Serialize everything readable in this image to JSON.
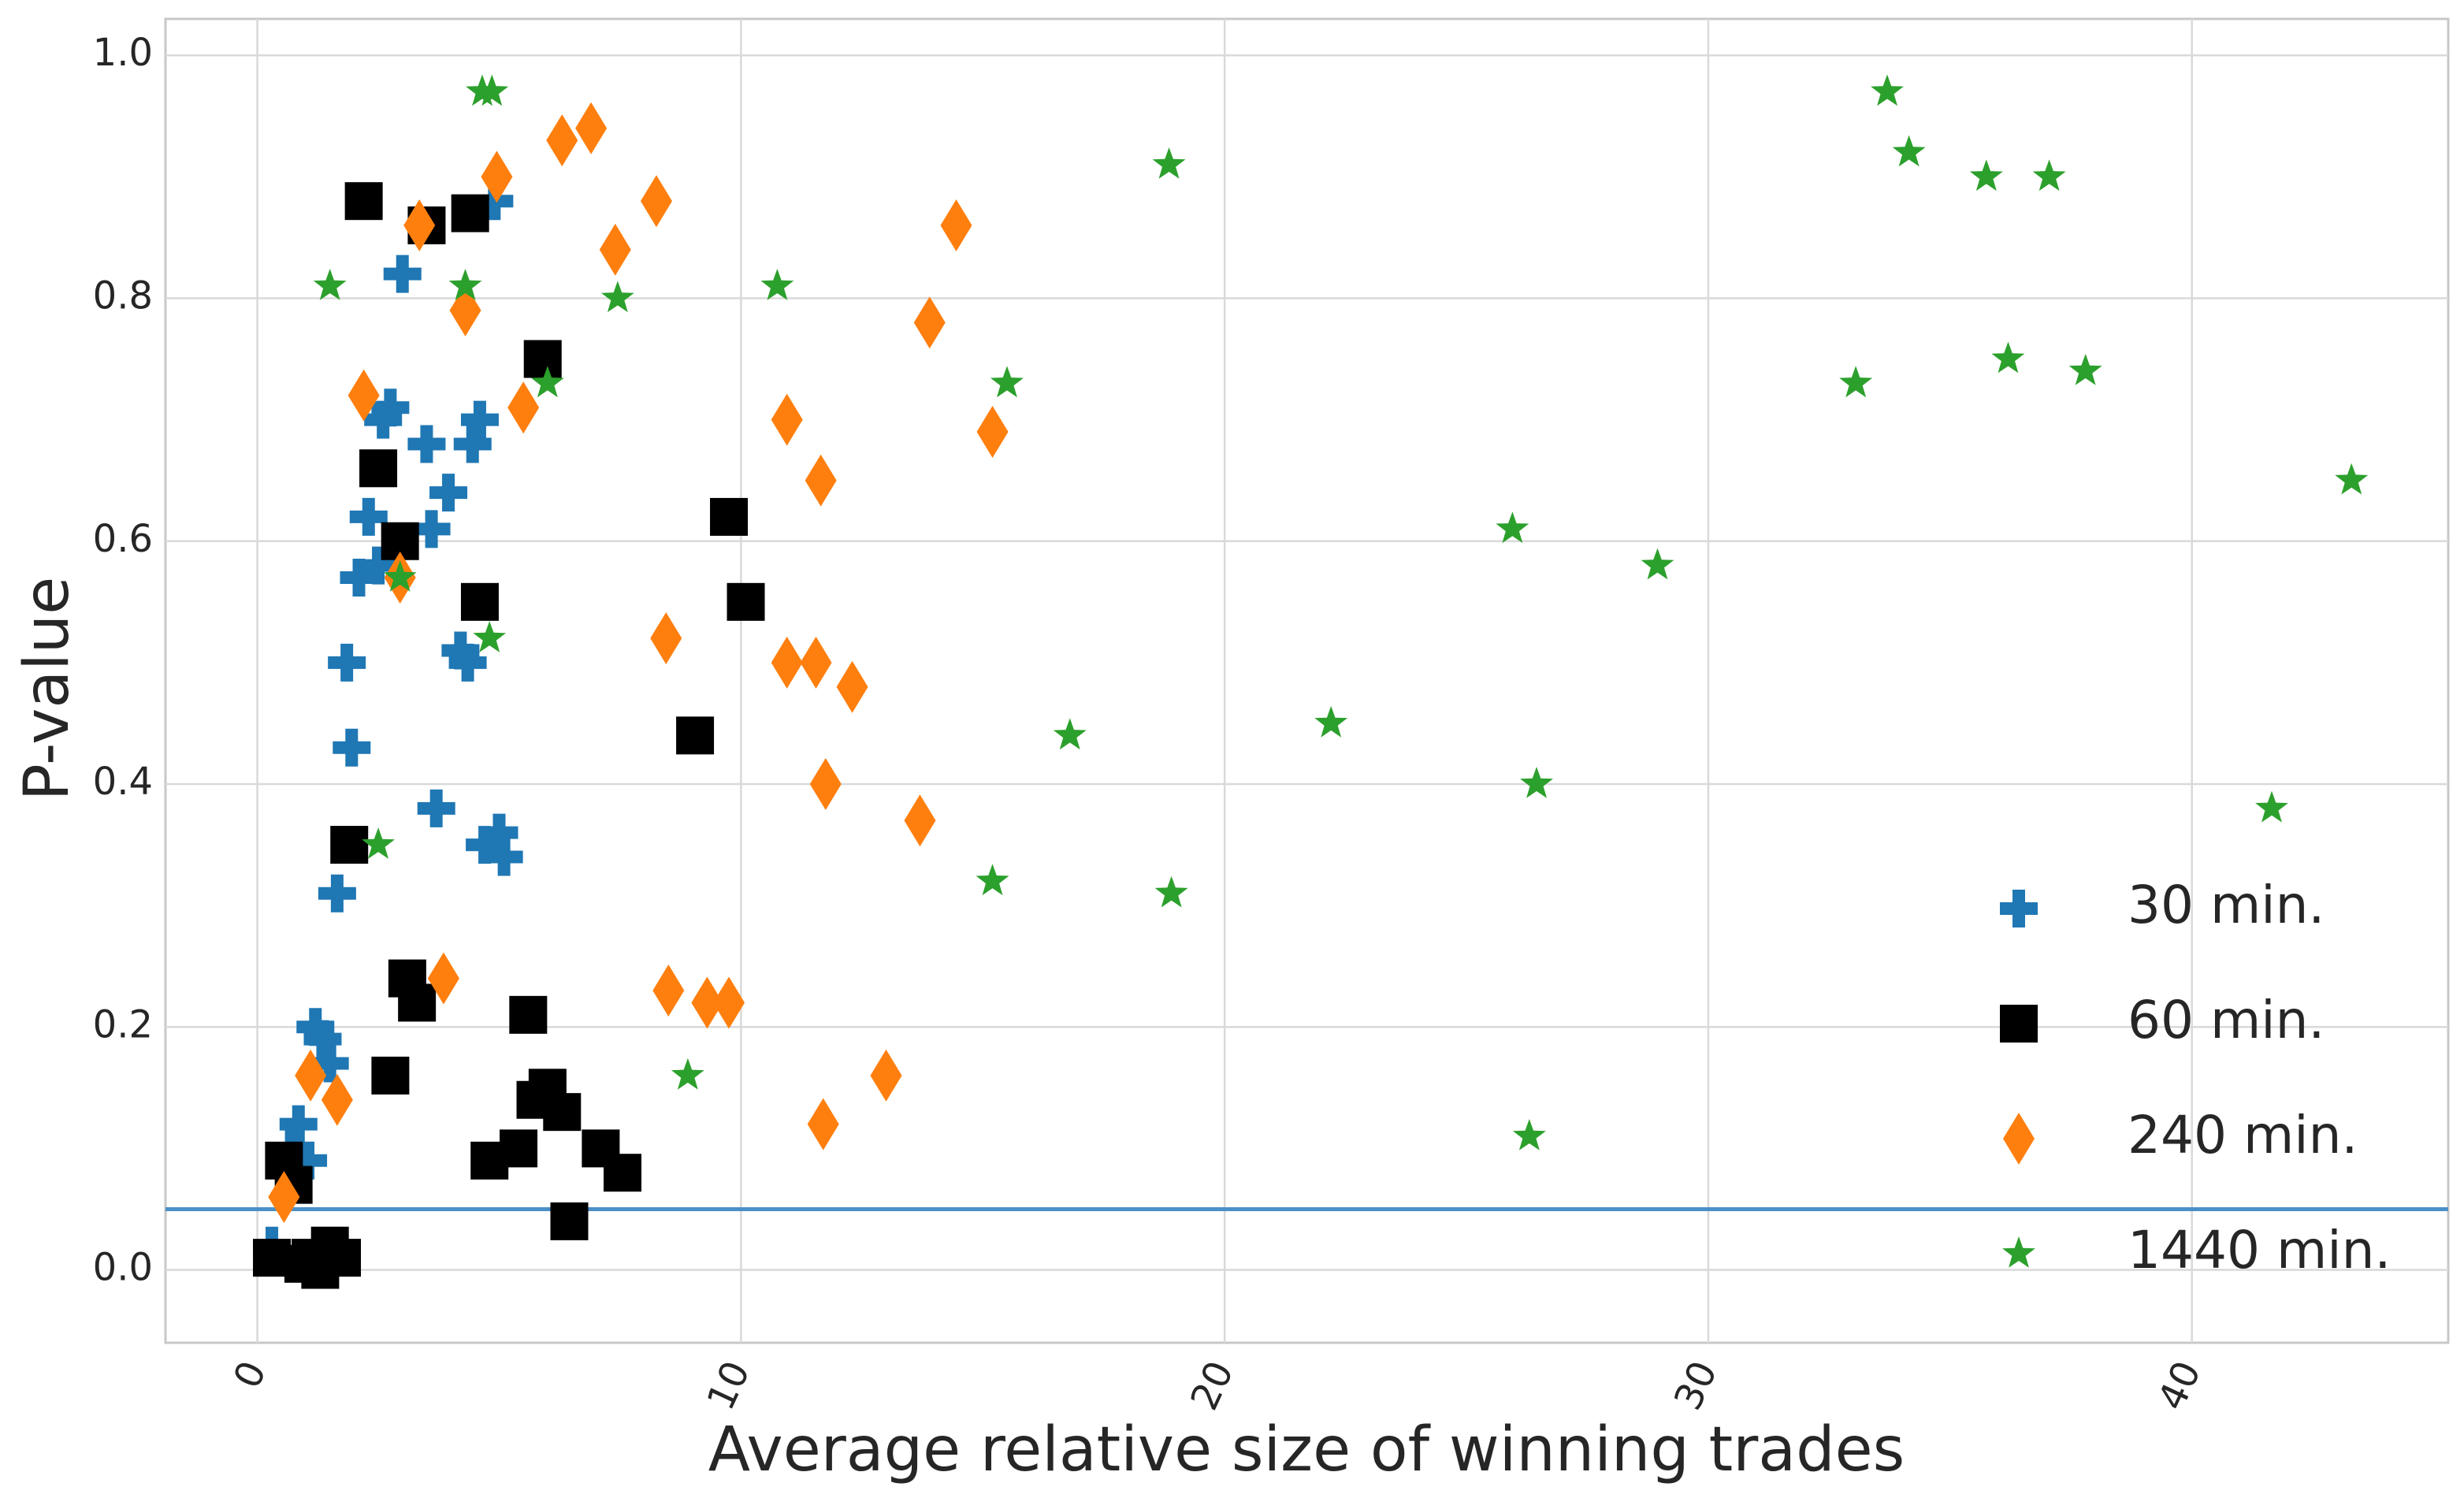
{
  "chart_data": {
    "type": "scatter",
    "title": "",
    "xlabel": "Average relative size of winning trades",
    "ylabel": "P-value",
    "xlim": [
      -1.9,
      45.3
    ],
    "ylim": [
      -0.06,
      1.03
    ],
    "xticks": [
      0,
      10,
      20,
      30,
      40
    ],
    "xtick_labels": [
      "0",
      "10",
      "20",
      "30",
      "40"
    ],
    "yticks": [
      0.0,
      0.2,
      0.4,
      0.6,
      0.8,
      1.0
    ],
    "ytick_labels": [
      "0.0",
      "0.2",
      "0.4",
      "0.6",
      "0.8",
      "1.0"
    ],
    "grid": true,
    "legend_position": "lower-right",
    "reference_line": {
      "y": 0.05,
      "color": "#4c8fc8"
    },
    "series": [
      {
        "name": "30 min.",
        "marker": "plus",
        "color": "#1f77b4",
        "points": [
          [
            0.3,
            0.02
          ],
          [
            0.7,
            0.1
          ],
          [
            0.85,
            0.12
          ],
          [
            1.05,
            0.09
          ],
          [
            1.2,
            0.2
          ],
          [
            1.35,
            0.19
          ],
          [
            1.5,
            0.17
          ],
          [
            1.65,
            0.31
          ],
          [
            1.85,
            0.5
          ],
          [
            1.95,
            0.43
          ],
          [
            2.1,
            0.57
          ],
          [
            2.3,
            0.62
          ],
          [
            2.5,
            0.58
          ],
          [
            2.6,
            0.7
          ],
          [
            2.75,
            0.71
          ],
          [
            3.0,
            0.82
          ],
          [
            3.5,
            0.68
          ],
          [
            3.6,
            0.61
          ],
          [
            3.7,
            0.38
          ],
          [
            3.95,
            0.64
          ],
          [
            4.2,
            0.51
          ],
          [
            4.35,
            0.5
          ],
          [
            4.45,
            0.68
          ],
          [
            4.6,
            0.7
          ],
          [
            4.7,
            0.35
          ],
          [
            4.9,
            0.88
          ],
          [
            5.0,
            0.36
          ],
          [
            5.1,
            0.34
          ]
        ]
      },
      {
        "name": "60 min.",
        "marker": "square",
        "color": "#000000",
        "points": [
          [
            0.3,
            0.01
          ],
          [
            0.55,
            0.09
          ],
          [
            0.75,
            0.07
          ],
          [
            0.95,
            0.005
          ],
          [
            1.1,
            0.01
          ],
          [
            1.3,
            0.0
          ],
          [
            1.5,
            0.02
          ],
          [
            1.75,
            0.01
          ],
          [
            1.9,
            0.35
          ],
          [
            2.2,
            0.88
          ],
          [
            2.5,
            0.66
          ],
          [
            2.75,
            0.16
          ],
          [
            2.95,
            0.6
          ],
          [
            3.1,
            0.24
          ],
          [
            3.3,
            0.22
          ],
          [
            3.5,
            0.86
          ],
          [
            4.4,
            0.87
          ],
          [
            4.6,
            0.55
          ],
          [
            4.8,
            0.09
          ],
          [
            5.4,
            0.1
          ],
          [
            5.6,
            0.21
          ],
          [
            5.75,
            0.14
          ],
          [
            5.9,
            0.75
          ],
          [
            6.0,
            0.15
          ],
          [
            6.3,
            0.13
          ],
          [
            6.45,
            0.04
          ],
          [
            7.1,
            0.1
          ],
          [
            7.55,
            0.08
          ],
          [
            9.05,
            0.44
          ],
          [
            9.75,
            0.62
          ],
          [
            10.1,
            0.55
          ]
        ]
      },
      {
        "name": "240 min.",
        "marker": "diamond",
        "color": "#ff7f0e",
        "points": [
          [
            0.55,
            0.06
          ],
          [
            1.1,
            0.16
          ],
          [
            1.65,
            0.14
          ],
          [
            2.2,
            0.72
          ],
          [
            2.95,
            0.57
          ],
          [
            3.35,
            0.86
          ],
          [
            3.85,
            0.24
          ],
          [
            4.3,
            0.79
          ],
          [
            4.95,
            0.9
          ],
          [
            5.5,
            0.71
          ],
          [
            6.3,
            0.93
          ],
          [
            6.9,
            0.94
          ],
          [
            7.4,
            0.84
          ],
          [
            8.25,
            0.88
          ],
          [
            8.45,
            0.52
          ],
          [
            8.5,
            0.23
          ],
          [
            9.3,
            0.22
          ],
          [
            9.75,
            0.22
          ],
          [
            10.95,
            0.7
          ],
          [
            10.95,
            0.5
          ],
          [
            11.55,
            0.5
          ],
          [
            11.65,
            0.65
          ],
          [
            11.7,
            0.12
          ],
          [
            11.75,
            0.4
          ],
          [
            12.3,
            0.48
          ],
          [
            13.0,
            0.16
          ],
          [
            13.7,
            0.37
          ],
          [
            13.9,
            0.78
          ],
          [
            14.45,
            0.86
          ],
          [
            15.2,
            0.69
          ]
        ]
      },
      {
        "name": "1440 min.",
        "marker": "star",
        "color": "#2ca02c",
        "points": [
          [
            1.5,
            0.81
          ],
          [
            2.5,
            0.35
          ],
          [
            2.95,
            0.57
          ],
          [
            4.3,
            0.81
          ],
          [
            4.65,
            0.97
          ],
          [
            4.8,
            0.52
          ],
          [
            4.85,
            0.97
          ],
          [
            6.0,
            0.73
          ],
          [
            7.45,
            0.8
          ],
          [
            8.9,
            0.16
          ],
          [
            10.75,
            0.81
          ],
          [
            15.2,
            0.32
          ],
          [
            15.5,
            0.73
          ],
          [
            16.8,
            0.44
          ],
          [
            18.85,
            0.91
          ],
          [
            18.9,
            0.31
          ],
          [
            22.2,
            0.45
          ],
          [
            25.95,
            0.61
          ],
          [
            26.3,
            0.11
          ],
          [
            26.45,
            0.4
          ],
          [
            28.95,
            0.58
          ],
          [
            33.05,
            0.73
          ],
          [
            33.7,
            0.97
          ],
          [
            34.15,
            0.92
          ],
          [
            35.75,
            0.9
          ],
          [
            36.2,
            0.75
          ],
          [
            37.05,
            0.9
          ],
          [
            37.8,
            0.74
          ],
          [
            41.65,
            0.38
          ],
          [
            43.3,
            0.65
          ]
        ]
      }
    ]
  }
}
